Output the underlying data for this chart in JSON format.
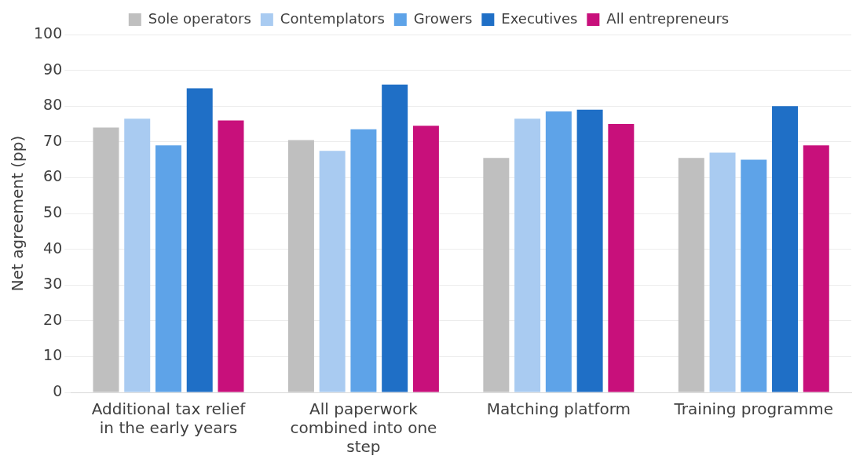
{
  "chart_data": {
    "type": "bar",
    "ylabel": "Net agreement (pp)",
    "categories": [
      "Additional tax relief in the early years",
      "All paperwork combined into one step",
      "Matching platform",
      "Training programme"
    ],
    "series": [
      {
        "name": "Sole operators",
        "color": "#bfbfbf",
        "values": [
          74,
          70.5,
          65.5,
          65.5
        ]
      },
      {
        "name": "Contemplators",
        "color": "#a9cbf1",
        "values": [
          76.5,
          67.5,
          76.5,
          67
        ]
      },
      {
        "name": "Growers",
        "color": "#5ea3e8",
        "values": [
          69,
          73.5,
          78.5,
          65
        ]
      },
      {
        "name": "Executives",
        "color": "#1f6fc6",
        "values": [
          85,
          86,
          79,
          80
        ]
      },
      {
        "name": "All entrepreneurs",
        "color": "#c8107b",
        "values": [
          76,
          74.5,
          75,
          69
        ]
      }
    ],
    "ylim": [
      0,
      100
    ],
    "yticks": [
      0,
      10,
      20,
      30,
      40,
      50,
      60,
      70,
      80,
      90,
      100
    ],
    "grid": "y",
    "legend": "top"
  }
}
